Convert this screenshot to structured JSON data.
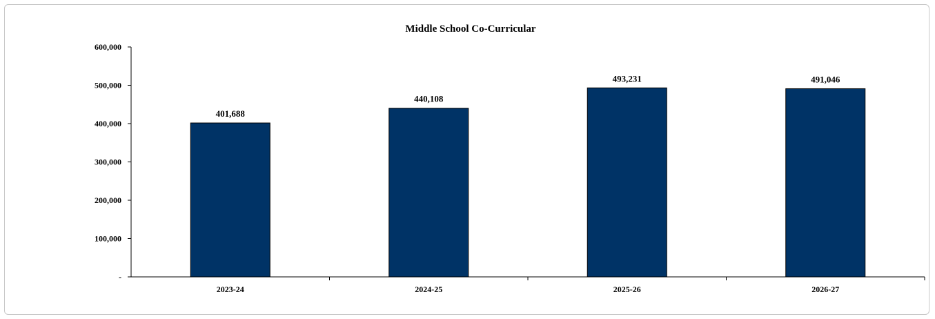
{
  "chart_data": {
    "type": "bar",
    "title": "Middle School  Co-Curricular",
    "categories": [
      "2023-24",
      "2024-25",
      "2025-26",
      "2026-27"
    ],
    "values": [
      401688,
      440108,
      493231,
      491046
    ],
    "value_labels": [
      "401,688",
      "440,108",
      "493,231",
      "491,046"
    ],
    "xlabel": "",
    "ylabel": "",
    "ylim": [
      0,
      600000
    ],
    "yticks": [
      0,
      100000,
      200000,
      300000,
      400000,
      500000,
      600000
    ],
    "ytick_labels": [
      "-",
      "100,000",
      "200,000",
      "300,000",
      "400,000",
      "500,000",
      "600,000"
    ],
    "grid": false,
    "legend": "none",
    "bar_color": "#003366"
  }
}
